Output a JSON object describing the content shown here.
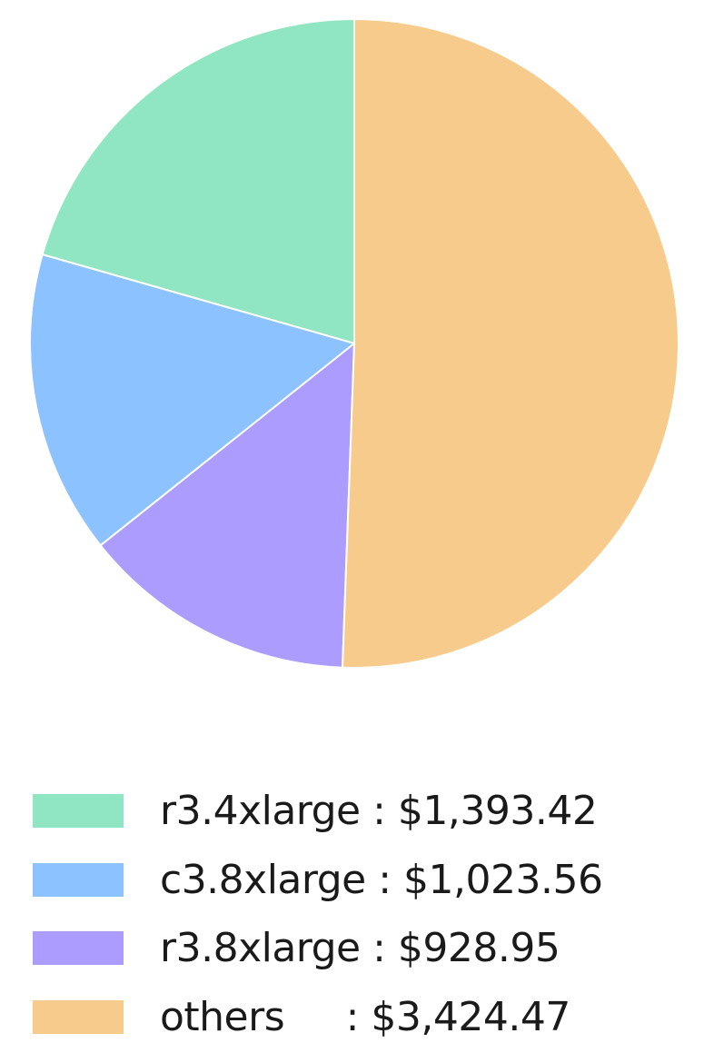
{
  "chart_data": {
    "type": "pie",
    "start_angle_deg": 90,
    "direction": "counterclockwise",
    "legend_placement": "bottom",
    "slices": [
      {
        "name": "r3.4xlarge",
        "value": 1393.42,
        "label": "r3.4xlarge : $1,393.42",
        "color": "#90e5c2"
      },
      {
        "name": "c3.8xlarge",
        "value": 1023.56,
        "label": "c3.8xlarge : $1,023.56",
        "color": "#8cc2ff"
      },
      {
        "name": "r3.8xlarge",
        "value": 928.95,
        "label": "r3.8xlarge : $928.95",
        "color": "#ab9cfd"
      },
      {
        "name": "others",
        "value": 3424.47,
        "label": "others     : $3,424.47",
        "color": "#f7cb8c"
      }
    ]
  }
}
